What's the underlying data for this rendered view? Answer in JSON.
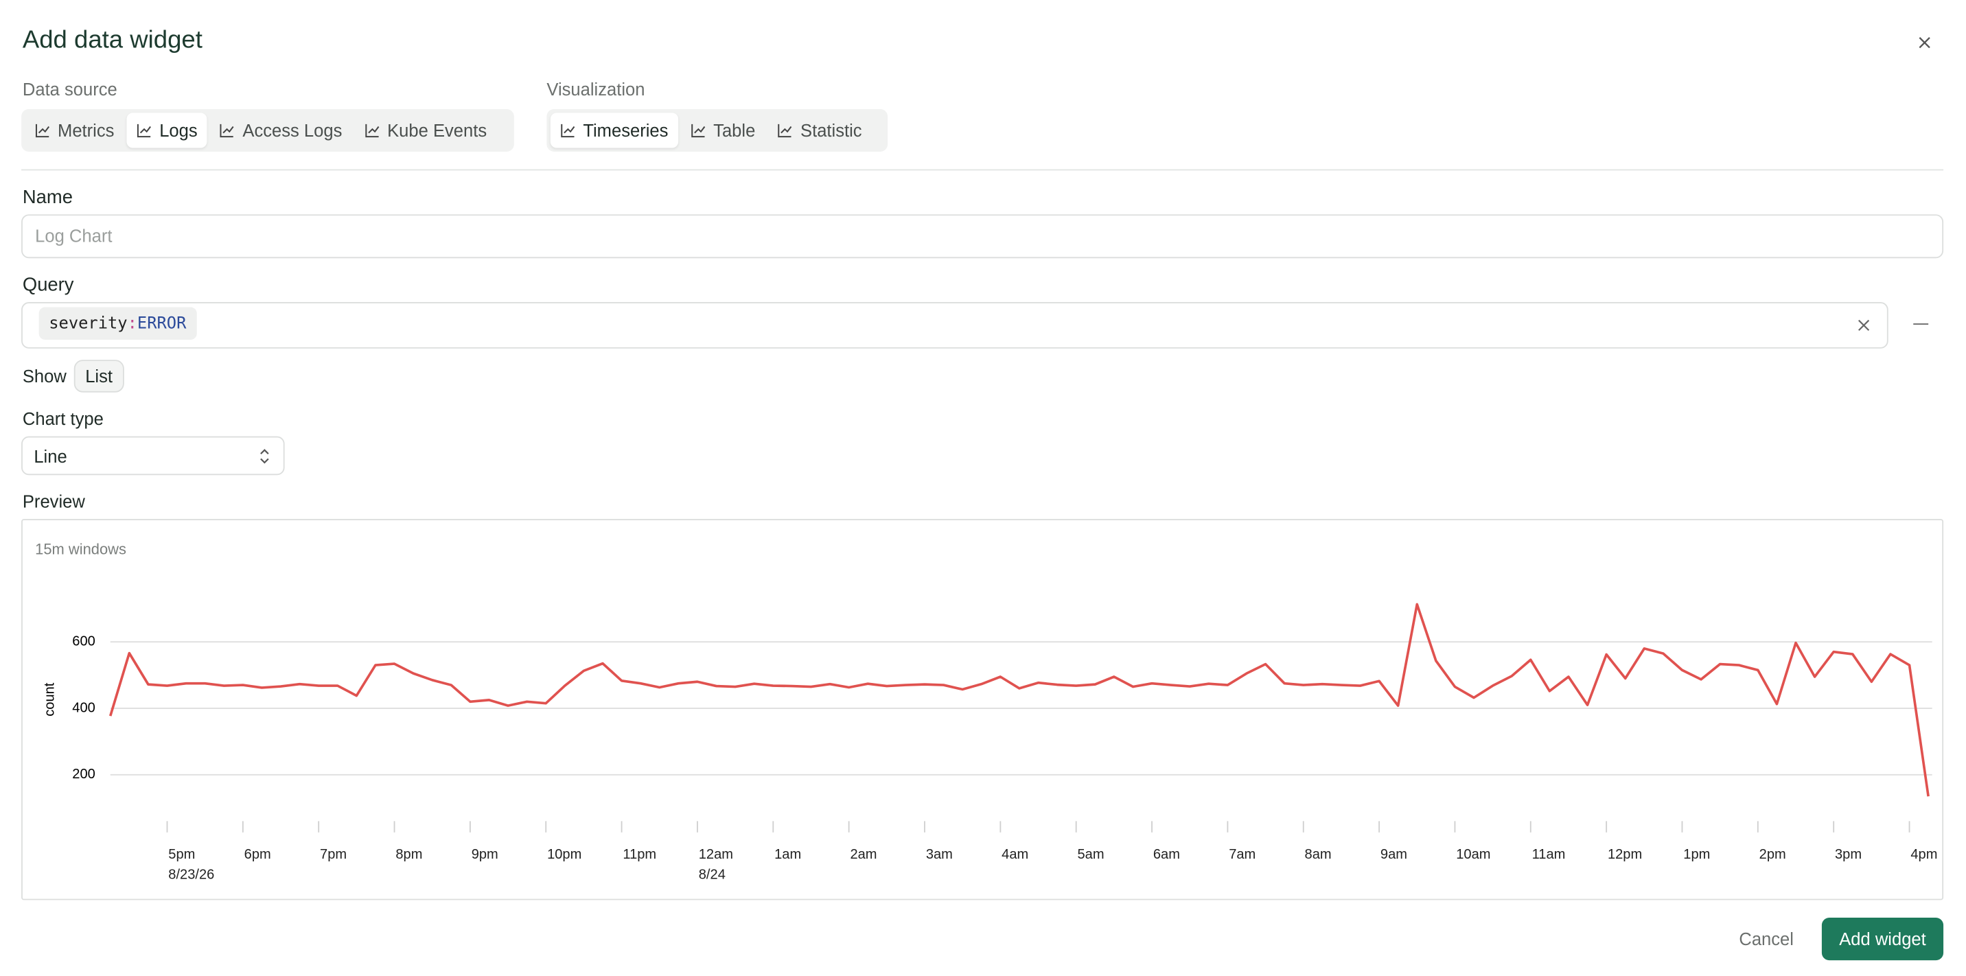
{
  "dialog": {
    "title": "Add data widget"
  },
  "data_source": {
    "label": "Data source",
    "options": [
      "Metrics",
      "Logs",
      "Access Logs",
      "Kube Events"
    ],
    "selected": 1
  },
  "visualization": {
    "label": "Visualization",
    "options": [
      "Timeseries",
      "Table",
      "Statistic"
    ],
    "selected": 0
  },
  "name": {
    "label": "Name",
    "placeholder": "Log Chart"
  },
  "query": {
    "label": "Query",
    "field": "severity",
    "operator": ":",
    "value": "ERROR"
  },
  "show": {
    "label": "Show",
    "option": "List"
  },
  "chart_type": {
    "label": "Chart type",
    "value": "Line"
  },
  "preview": {
    "label": "Preview",
    "window": "15m windows"
  },
  "buttons": {
    "cancel": "Cancel",
    "submit": "Add widget"
  },
  "chart_data": {
    "type": "line",
    "y_label": "count",
    "color": "#e0524f",
    "grid": true,
    "ylim": [
      90,
      800
    ],
    "yticks": [
      200,
      400,
      600
    ],
    "categories": [
      null,
      null,
      null,
      "5pm\n8/23/26",
      null,
      null,
      null,
      "6pm",
      null,
      null,
      null,
      "7pm",
      null,
      null,
      null,
      "8pm",
      null,
      null,
      null,
      "9pm",
      null,
      null,
      null,
      "10pm",
      null,
      null,
      null,
      "11pm",
      null,
      null,
      null,
      "12am\n8/24",
      null,
      null,
      null,
      "1am",
      null,
      null,
      null,
      "2am",
      null,
      null,
      null,
      "3am",
      null,
      null,
      null,
      "4am",
      null,
      null,
      null,
      "5am",
      null,
      null,
      null,
      "6am",
      null,
      null,
      null,
      "7am",
      null,
      null,
      null,
      "8am",
      null,
      null,
      null,
      "9am",
      null,
      null,
      null,
      "10am",
      null,
      null,
      null,
      "11am",
      null,
      null,
      null,
      "12pm",
      null,
      null,
      null,
      "1pm",
      null,
      null,
      null,
      "2pm",
      null,
      null,
      null,
      "3pm",
      null,
      null,
      null,
      "4pm",
      null
    ],
    "values": [
      377,
      566,
      472,
      468,
      475,
      475,
      468,
      470,
      462,
      466,
      473,
      468,
      468,
      438,
      530,
      534,
      505,
      485,
      470,
      420,
      425,
      408,
      420,
      415,
      468,
      513,
      535,
      483,
      475,
      463,
      475,
      480,
      467,
      465,
      474,
      468,
      467,
      465,
      473,
      463,
      474,
      467,
      470,
      472,
      470,
      457,
      473,
      495,
      460,
      477,
      471,
      468,
      472,
      495,
      465,
      475,
      470,
      466,
      474,
      470,
      505,
      533,
      475,
      470,
      473,
      470,
      468,
      482,
      408,
      713,
      543,
      465,
      432,
      468,
      497,
      546,
      452,
      495,
      410,
      562,
      490,
      580,
      565,
      515,
      487,
      533,
      530,
      515,
      413,
      597,
      495,
      570,
      563,
      480,
      563,
      530,
      135
    ]
  }
}
